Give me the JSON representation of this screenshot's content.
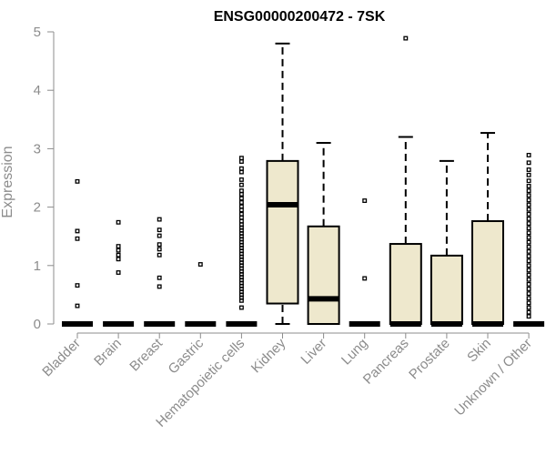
{
  "chart_data": {
    "type": "box",
    "title": "ENSG00000200472 - 7SK",
    "ylabel": "Expression",
    "xlabel": "",
    "ylim": [
      0,
      5
    ],
    "yticks": [
      0,
      1,
      2,
      3,
      4,
      5
    ],
    "grid": false,
    "colors": {
      "box_fill": "#eee8cd",
      "stroke": "#000000",
      "axis": "#8c8c8c"
    },
    "categories": [
      "Bladder",
      "Brain",
      "Breast",
      "Gastric",
      "Hematopoietic cells",
      "Kidney",
      "Liver",
      "Lung",
      "Pancreas",
      "Prostate",
      "Skin",
      "Unknown / Other"
    ],
    "boxes": [
      {
        "category": "Bladder",
        "min": 0,
        "q1": 0,
        "median": 0,
        "q3": 0,
        "max": 0,
        "outliers": [
          2.44,
          1.59,
          1.46,
          0.66,
          0.31
        ]
      },
      {
        "category": "Brain",
        "min": 0,
        "q1": 0,
        "median": 0,
        "q3": 0,
        "max": 0,
        "outliers": [
          1.74,
          1.33,
          1.26,
          1.18,
          1.11,
          0.88
        ]
      },
      {
        "category": "Breast",
        "min": 0,
        "q1": 0,
        "median": 0,
        "q3": 0,
        "max": 0,
        "outliers": [
          1.79,
          1.61,
          1.51,
          1.36,
          1.28,
          1.18,
          0.79,
          0.64
        ]
      },
      {
        "category": "Gastric",
        "min": 0,
        "q1": 0,
        "median": 0,
        "q3": 0,
        "max": 0,
        "outliers": [
          1.02
        ]
      },
      {
        "category": "Hematopoietic cells",
        "min": 0,
        "q1": 0,
        "median": 0,
        "q3": 0,
        "max": 0,
        "outliers": [
          2.84,
          2.78,
          2.66,
          2.6,
          2.47,
          2.38,
          2.28,
          2.22,
          2.15,
          2.08,
          2.01,
          1.95,
          1.88,
          1.82,
          1.76,
          1.7,
          1.65,
          1.6,
          1.55,
          1.5,
          1.45,
          1.4,
          1.35,
          1.3,
          1.25,
          1.2,
          1.15,
          1.1,
          1.05,
          1.0,
          0.95,
          0.9,
          0.85,
          0.8,
          0.75,
          0.7,
          0.65,
          0.6,
          0.55,
          0.5,
          0.45,
          0.4,
          0.28
        ]
      },
      {
        "category": "Kidney",
        "min": 0,
        "q1": 0.35,
        "median": 2.04,
        "q3": 2.79,
        "max": 4.8,
        "outliers": []
      },
      {
        "category": "Liver",
        "min": 0,
        "q1": 0,
        "median": 0.43,
        "q3": 1.67,
        "max": 3.1,
        "outliers": []
      },
      {
        "category": "Lung",
        "min": 0,
        "q1": 0,
        "median": 0,
        "q3": 0,
        "max": 0,
        "outliers": [
          2.11,
          0.78
        ]
      },
      {
        "category": "Pancreas",
        "min": 0,
        "q1": 0,
        "median": 0,
        "q3": 1.37,
        "max": 3.2,
        "outliers": [
          4.89
        ]
      },
      {
        "category": "Prostate",
        "min": 0,
        "q1": 0,
        "median": 0,
        "q3": 1.17,
        "max": 2.79,
        "outliers": []
      },
      {
        "category": "Skin",
        "min": 0,
        "q1": 0,
        "median": 0,
        "q3": 1.76,
        "max": 3.27,
        "outliers": []
      },
      {
        "category": "Unknown / Other",
        "min": 0,
        "q1": 0,
        "median": 0,
        "q3": 0,
        "max": 0,
        "outliers": [
          2.89,
          2.76,
          2.64,
          2.55,
          2.45,
          2.36,
          2.28,
          2.2,
          2.12,
          2.04,
          1.96,
          1.88,
          1.8,
          1.72,
          1.64,
          1.56,
          1.48,
          1.4,
          1.32,
          1.24,
          1.16,
          1.08,
          1.0,
          0.92,
          0.84,
          0.76,
          0.68,
          0.6,
          0.52,
          0.44,
          0.36,
          0.28,
          0.2,
          0.13
        ]
      }
    ]
  }
}
